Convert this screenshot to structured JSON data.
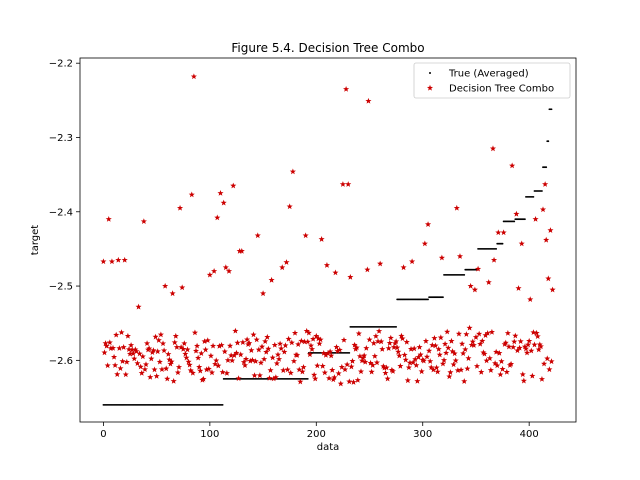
{
  "chart_data": {
    "type": "scatter",
    "title": "Figure 5.4. Decision Tree Combo",
    "xlabel": "data",
    "ylabel": "target",
    "xlim": [
      -22,
      444
    ],
    "ylim": [
      -2.683,
      -2.193
    ],
    "x_ticks": [
      0,
      100,
      200,
      300,
      400
    ],
    "y_ticks": [
      -2.6,
      -2.5,
      -2.4,
      -2.3,
      -2.2
    ],
    "x_tick_labels": [
      "0",
      "100",
      "200",
      "300",
      "400"
    ],
    "y_tick_labels": [
      "−2.6",
      "−2.5",
      "−2.4",
      "−2.3",
      "−2.2"
    ],
    "legend_position": "top-right",
    "grid": false,
    "n_points": 422,
    "series": [
      {
        "name": "True (Averaged)",
        "marker": "dot",
        "color": "#000000",
        "step_levels": [
          {
            "x_start": 0,
            "x_end": 112,
            "y": -2.66
          },
          {
            "x_start": 113,
            "x_end": 192,
            "y": -2.625
          },
          {
            "x_start": 193,
            "x_end": 231,
            "y": -2.59
          },
          {
            "x_start": 232,
            "x_end": 263,
            "y": -2.555
          },
          {
            "x_start": 264,
            "x_end": 275,
            "y": -2.555
          },
          {
            "x_start": 276,
            "x_end": 305,
            "y": -2.518
          },
          {
            "x_start": 306,
            "x_end": 319,
            "y": -2.515
          },
          {
            "x_start": 320,
            "x_end": 339,
            "y": -2.485
          },
          {
            "x_start": 340,
            "x_end": 351,
            "y": -2.478
          },
          {
            "x_start": 352,
            "x_end": 369,
            "y": -2.45
          },
          {
            "x_start": 370,
            "x_end": 375,
            "y": -2.443
          },
          {
            "x_start": 376,
            "x_end": 386,
            "y": -2.413
          },
          {
            "x_start": 387,
            "x_end": 396,
            "y": -2.41
          },
          {
            "x_start": 397,
            "x_end": 404,
            "y": -2.38
          },
          {
            "x_start": 405,
            "x_end": 412,
            "y": -2.372
          },
          {
            "x_start": 413,
            "x_end": 416,
            "y": -2.34
          },
          {
            "x_start": 417,
            "x_end": 418,
            "y": -2.305
          },
          {
            "x_start": 419,
            "x_end": 421,
            "y": -2.262
          }
        ]
      },
      {
        "name": "Decision Tree Combo",
        "marker": "star",
        "color": "#cc0000",
        "band_center": -2.595,
        "band_spread": 0.03,
        "outliers": [
          {
            "x": 0,
            "y": -2.467
          },
          {
            "x": 5,
            "y": -2.41
          },
          {
            "x": 8,
            "y": -2.467
          },
          {
            "x": 14,
            "y": -2.465
          },
          {
            "x": 20,
            "y": -2.465
          },
          {
            "x": 33,
            "y": -2.528
          },
          {
            "x": 38,
            "y": -2.413
          },
          {
            "x": 58,
            "y": -2.5
          },
          {
            "x": 65,
            "y": -2.51
          },
          {
            "x": 72,
            "y": -2.395
          },
          {
            "x": 74,
            "y": -2.502
          },
          {
            "x": 83,
            "y": -2.377
          },
          {
            "x": 85,
            "y": -2.218
          },
          {
            "x": 100,
            "y": -2.485
          },
          {
            "x": 104,
            "y": -2.48
          },
          {
            "x": 107,
            "y": -2.408
          },
          {
            "x": 110,
            "y": -2.375
          },
          {
            "x": 113,
            "y": -2.388
          },
          {
            "x": 115,
            "y": -2.475
          },
          {
            "x": 118,
            "y": -2.48
          },
          {
            "x": 122,
            "y": -2.365
          },
          {
            "x": 128,
            "y": -2.453
          },
          {
            "x": 130,
            "y": -2.453
          },
          {
            "x": 145,
            "y": -2.432
          },
          {
            "x": 150,
            "y": -2.51
          },
          {
            "x": 158,
            "y": -2.492
          },
          {
            "x": 168,
            "y": -2.475
          },
          {
            "x": 172,
            "y": -2.468
          },
          {
            "x": 175,
            "y": -2.393
          },
          {
            "x": 178,
            "y": -2.346
          },
          {
            "x": 190,
            "y": -2.432
          },
          {
            "x": 205,
            "y": -2.437
          },
          {
            "x": 210,
            "y": -2.472
          },
          {
            "x": 218,
            "y": -2.482
          },
          {
            "x": 225,
            "y": -2.363
          },
          {
            "x": 228,
            "y": -2.235
          },
          {
            "x": 230,
            "y": -2.363
          },
          {
            "x": 232,
            "y": -2.488
          },
          {
            "x": 248,
            "y": -2.478
          },
          {
            "x": 249,
            "y": -2.251
          },
          {
            "x": 260,
            "y": -2.47
          },
          {
            "x": 282,
            "y": -2.475
          },
          {
            "x": 290,
            "y": -2.467
          },
          {
            "x": 302,
            "y": -2.443
          },
          {
            "x": 305,
            "y": -2.417
          },
          {
            "x": 318,
            "y": -2.462
          },
          {
            "x": 332,
            "y": -2.395
          },
          {
            "x": 335,
            "y": -2.46
          },
          {
            "x": 345,
            "y": -2.5
          },
          {
            "x": 349,
            "y": -2.505
          },
          {
            "x": 352,
            "y": -2.477
          },
          {
            "x": 362,
            "y": -2.495
          },
          {
            "x": 366,
            "y": -2.315
          },
          {
            "x": 367,
            "y": -2.465
          },
          {
            "x": 371,
            "y": -2.428
          },
          {
            "x": 376,
            "y": -2.428
          },
          {
            "x": 384,
            "y": -2.338
          },
          {
            "x": 388,
            "y": -2.403
          },
          {
            "x": 390,
            "y": -2.503
          },
          {
            "x": 393,
            "y": -2.443
          },
          {
            "x": 401,
            "y": -2.518
          },
          {
            "x": 406,
            "y": -2.41
          },
          {
            "x": 413,
            "y": -2.397
          },
          {
            "x": 415,
            "y": -2.363
          },
          {
            "x": 416,
            "y": -2.438
          },
          {
            "x": 418,
            "y": -2.49
          },
          {
            "x": 420,
            "y": -2.425
          },
          {
            "x": 422,
            "y": -2.505
          }
        ]
      }
    ]
  }
}
